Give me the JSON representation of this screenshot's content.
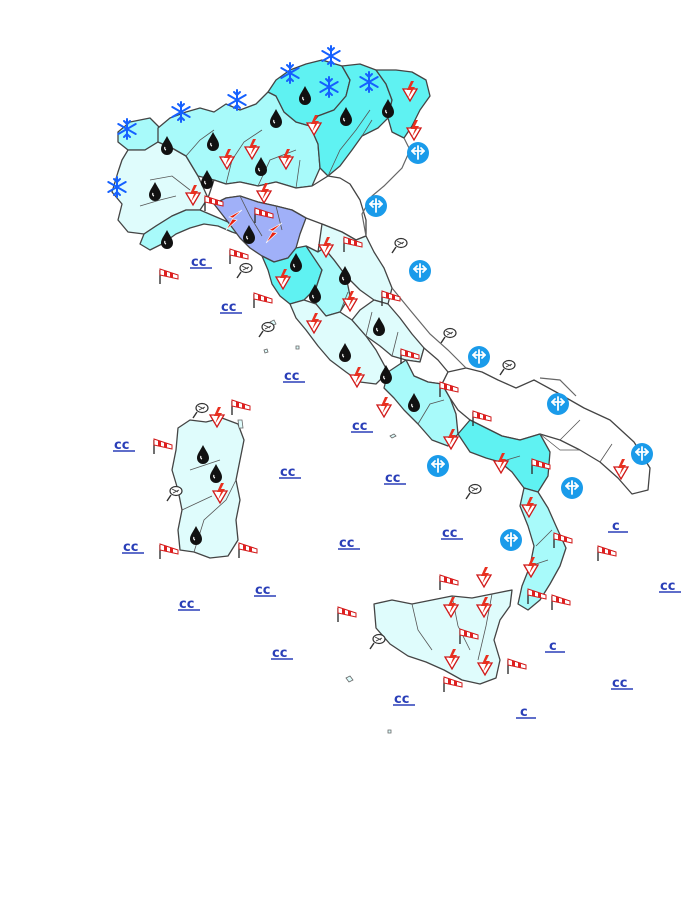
{
  "map": {
    "colors": {
      "outline": "#555555",
      "region_border": "#333333",
      "sea_state_text": "#2a3fb8",
      "level_light": "#dffcfc",
      "level_medium": "#a8fafa",
      "level_high": "#5ff2f2",
      "level_severe": "#a0b0f8",
      "snow_icon": "#1560ff",
      "wind_icon": "#1a9bea",
      "rain_icon": "#111111",
      "thunder_icon": "#e02020",
      "windsock_icon": "#e02020"
    },
    "icons": {
      "snow": "snowflake-icon",
      "rain": "raindrop-icon",
      "thunder": "thunderstorm-icon",
      "wind": "strong-wind-icon",
      "windsock": "windsock-icon",
      "fog": "fog-icon",
      "severe": "lightning-bolt-icon"
    },
    "sea_state_labels": [
      {
        "id": "sea-1",
        "text": "cc"
      },
      {
        "id": "sea-2",
        "text": "cc"
      },
      {
        "id": "sea-3",
        "text": "cc"
      },
      {
        "id": "sea-4",
        "text": "cc"
      },
      {
        "id": "sea-5",
        "text": "cc"
      },
      {
        "id": "sea-6",
        "text": "cc"
      },
      {
        "id": "sea-7",
        "text": "cc"
      },
      {
        "id": "sea-8",
        "text": "cc"
      },
      {
        "id": "sea-9",
        "text": "cc"
      },
      {
        "id": "sea-10",
        "text": "cc"
      },
      {
        "id": "sea-11",
        "text": "cc"
      },
      {
        "id": "sea-12",
        "text": "cc"
      },
      {
        "id": "sea-13",
        "text": "cc"
      },
      {
        "id": "sea-14",
        "text": "cc"
      },
      {
        "id": "sea-15",
        "text": "cc"
      },
      {
        "id": "sea-16",
        "text": "c"
      },
      {
        "id": "sea-17",
        "text": "c"
      },
      {
        "id": "sea-18",
        "text": "cc"
      },
      {
        "id": "sea-19",
        "text": "c"
      },
      {
        "id": "sea-20",
        "text": "cc"
      }
    ]
  }
}
